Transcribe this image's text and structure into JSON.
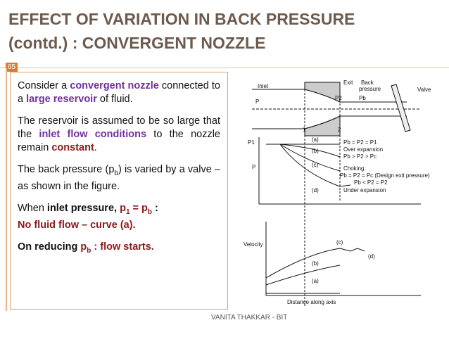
{
  "slide": {
    "title": [
      "EFFECT OF VARIATION IN BACK PRESSURE",
      "(contd.) : CONVERGENT NOZZLE"
    ],
    "page_number": "65",
    "paragraphs": [
      [
        "Consider a ",
        "convergent nozzle",
        " connected to a ",
        "large reservoir",
        " of fluid."
      ],
      [
        "The reservoir is assumed to be so large that the ",
        "inlet flow conditions",
        " to the nozzle remain ",
        "constant",
        "."
      ],
      [
        "The back pressure (p",
        "b",
        ") is varied by a valve – as shown in the figure."
      ],
      [
        "When ",
        "inlet pressure, ",
        "p",
        "1",
        " = p",
        "b",
        " :",
        "No fluid flow – curve (a)."
      ],
      [
        "On reducing ",
        "p",
        "b",
        " : flow starts."
      ]
    ],
    "figure": {
      "labels": [
        "Inlet",
        "P",
        "Exit",
        "Back",
        "pressure",
        "Valve",
        "P2",
        "Pb",
        "1",
        "2",
        "P1",
        "(a)",
        "(b)",
        "(c)",
        "(d)",
        "P",
        "Pb = P2 = P1",
        "Over expansion",
        "Pb > P2 > Pc",
        "Choking",
        "Pb = P2 = Pc (Design exit pressure)",
        "Pb < P2 = P2",
        "Under expansion",
        "Velocity",
        "(c)",
        "(d)",
        "(b)",
        "(a)",
        "Distance along axis"
      ]
    },
    "footer": "VANITA THAKKAR - BIT"
  }
}
